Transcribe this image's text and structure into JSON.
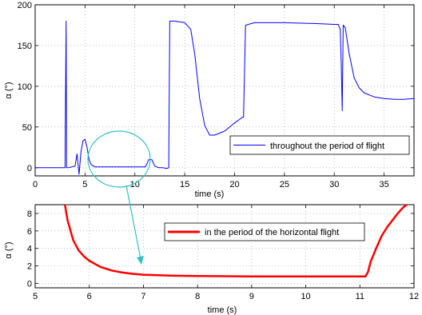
{
  "chart_data": [
    {
      "type": "line",
      "xlabel": "time (s)",
      "ylabel": "α (°)",
      "xlim": [
        0,
        38
      ],
      "ylim": [
        -10,
        200
      ],
      "xticks": [
        0,
        5,
        10,
        15,
        20,
        25,
        30,
        35
      ],
      "yticks": [
        0,
        50,
        100,
        150,
        200
      ],
      "grid": true,
      "legend_position": "right",
      "colors": {
        "series": "#0000ff",
        "highlight": "#33c0c8"
      },
      "annotation": "ellipse highlights the horizontal flight period (about 5.5–12 s) shown in the lower plot",
      "series": [
        {
          "name": "throughout the period of flight",
          "color": "#0000ff",
          "x": [
            0,
            3.0,
            3.1,
            3.15,
            3.2,
            3.3,
            4.0,
            4.2,
            4.4,
            4.6,
            4.8,
            5.0,
            5.2,
            5.4,
            5.6,
            6.0,
            7.0,
            8.0,
            9.0,
            10.0,
            11.0,
            11.1,
            11.4,
            11.7,
            12.0,
            12.4,
            12.8,
            13.2,
            13.4,
            13.5,
            13.7,
            14.0,
            15.0,
            15.6,
            16.0,
            16.5,
            17.0,
            17.5,
            18.0,
            19.0,
            20.0,
            20.8,
            20.9,
            21.1,
            22.0,
            25.0,
            28.0,
            30.0,
            30.4,
            30.6,
            30.7,
            30.8,
            30.9,
            31.1,
            31.5,
            32.0,
            32.5,
            33.0,
            34.0,
            35.0,
            36.0,
            37.0,
            38.0
          ],
          "values": [
            0,
            0,
            180,
            0,
            0,
            0,
            2,
            17,
            -8,
            20,
            33,
            35,
            25,
            10,
            4,
            1,
            1,
            1,
            1,
            1,
            1,
            2,
            10,
            10,
            2,
            0,
            0,
            -1,
            0,
            180,
            180,
            180,
            178,
            170,
            140,
            85,
            52,
            40,
            40,
            45,
            55,
            62,
            62,
            175,
            178,
            178,
            177,
            176,
            176,
            170,
            130,
            70,
            175,
            172,
            140,
            110,
            98,
            92,
            87,
            85,
            84,
            84,
            85
          ]
        }
      ]
    },
    {
      "type": "line",
      "xlabel": "time (s)",
      "ylabel": "α (°)",
      "xlim": [
        5,
        12
      ],
      "ylim": [
        -0.5,
        9
      ],
      "xticks": [
        5,
        6,
        7,
        8,
        9,
        10,
        11,
        12
      ],
      "yticks": [
        0,
        2,
        4,
        6,
        8
      ],
      "grid": true,
      "legend_position": "top-right",
      "series": [
        {
          "name": "in the period of the horizontal flight",
          "color": "#ff0000",
          "x": [
            5.55,
            5.6,
            5.7,
            5.8,
            5.9,
            6.0,
            6.2,
            6.4,
            6.6,
            6.8,
            7.0,
            7.5,
            8.0,
            9.0,
            10.0,
            10.5,
            11.1,
            11.15,
            11.2,
            11.3,
            11.4,
            11.5,
            11.6,
            11.7,
            11.8,
            11.87
          ],
          "values": [
            9,
            7.2,
            5.0,
            3.8,
            3.1,
            2.6,
            1.9,
            1.5,
            1.25,
            1.1,
            1.0,
            0.9,
            0.85,
            0.8,
            0.8,
            0.8,
            0.8,
            1.3,
            2.5,
            4.0,
            5.4,
            6.4,
            7.2,
            8.0,
            8.7,
            9.0
          ]
        }
      ]
    }
  ]
}
